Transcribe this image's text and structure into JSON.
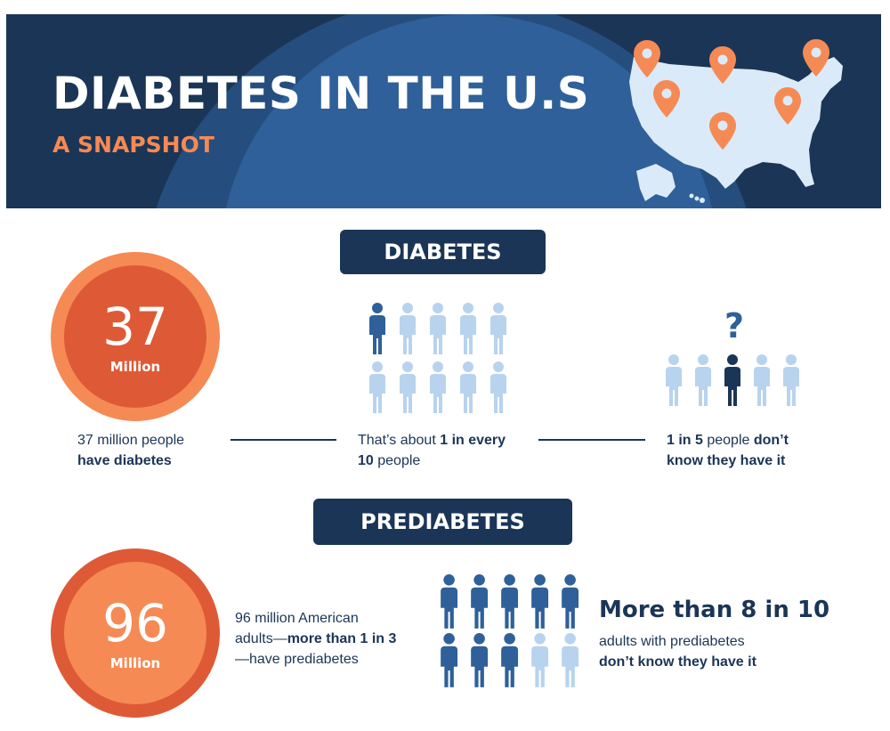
{
  "header": {
    "title": "DIABETES IN THE U.S",
    "subtitle": "A SNAPSHOT",
    "map_icon": "us-map-with-location-pins",
    "colors": {
      "navy": "#1b3556",
      "blue": "#2f6099",
      "light_blue": "#b8d3ee",
      "orange": "#f58a55",
      "red_orange": "#de5a36"
    }
  },
  "diabetes": {
    "section_label": "DIABETES",
    "count_number": "37",
    "count_unit": "Million",
    "count_text_1": "37 million people",
    "count_text_2": "have diabetes",
    "ratio_text_1": "That’s about ",
    "ratio_text_2": "1 in every",
    "ratio_text_3": "10",
    "ratio_text_4": " people",
    "ratio": {
      "highlighted": 1,
      "total": 10
    },
    "unaware_text_1": "1 in 5",
    "unaware_text_2": " people ",
    "unaware_text_3": "don’t",
    "unaware_text_4": "know they have it",
    "unaware": {
      "highlighted": 1,
      "total": 5
    },
    "question_mark": "?"
  },
  "prediabetes": {
    "section_label": "PREDIABETES",
    "count_number": "96",
    "count_unit": "Million",
    "count_text_1": "96 million American",
    "count_text_2": "adults—",
    "count_text_3": "more than 1 in 3",
    "count_text_4": "—have prediabetes",
    "stat_heading": "More than 8 in 10",
    "stat_text_1": "adults with prediabetes",
    "stat_text_2": "don’t know they have it",
    "unaware": {
      "highlighted": 8,
      "total": 10
    }
  }
}
